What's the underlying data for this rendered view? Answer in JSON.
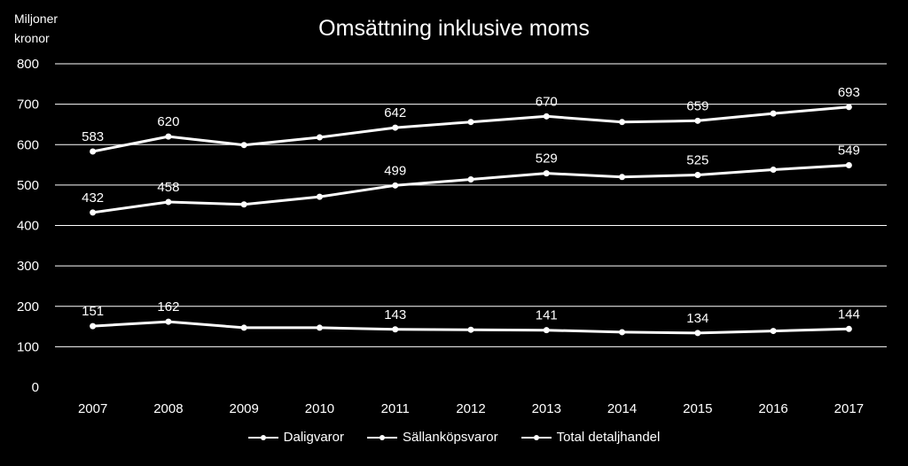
{
  "chart_data": {
    "type": "line",
    "title": "Omsättning inklusive moms",
    "ylabel": "Miljoner kronor",
    "ylabel_lines": [
      "Miljoner",
      "kronor"
    ],
    "xlabel": "",
    "ylim": [
      0,
      800
    ],
    "yticks": [
      0,
      100,
      200,
      300,
      400,
      500,
      600,
      700,
      800
    ],
    "grid": true,
    "legend_position": "bottom",
    "categories": [
      "2007",
      "2008",
      "2009",
      "2010",
      "2011",
      "2012",
      "2013",
      "2014",
      "2015",
      "2016",
      "2017"
    ],
    "legend": [
      "Daligvaror",
      "Sällanköpsvaror",
      "Total detaljhandel"
    ],
    "series": [
      {
        "values": [
          583,
          620,
          599,
          618,
          642,
          656,
          670,
          656,
          659,
          677,
          693
        ],
        "labels": [
          "583",
          "620",
          "",
          "",
          "642",
          "",
          "670",
          "",
          "659",
          "",
          "693"
        ]
      },
      {
        "values": [
          432,
          458,
          452,
          471,
          499,
          514,
          529,
          520,
          525,
          538,
          549
        ],
        "labels": [
          "432",
          "458",
          "",
          "",
          "499",
          "",
          "529",
          "",
          "525",
          "",
          "549"
        ]
      },
      {
        "values": [
          151,
          162,
          147,
          147,
          143,
          142,
          141,
          136,
          134,
          139,
          144
        ],
        "labels": [
          "151",
          "162",
          "",
          "",
          "143",
          "",
          "141",
          "",
          "134",
          "",
          "144"
        ]
      }
    ],
    "colors": {
      "background": "#000000",
      "line": "#ffffff",
      "grid": "#ffffff",
      "text": "#ffffff"
    }
  }
}
